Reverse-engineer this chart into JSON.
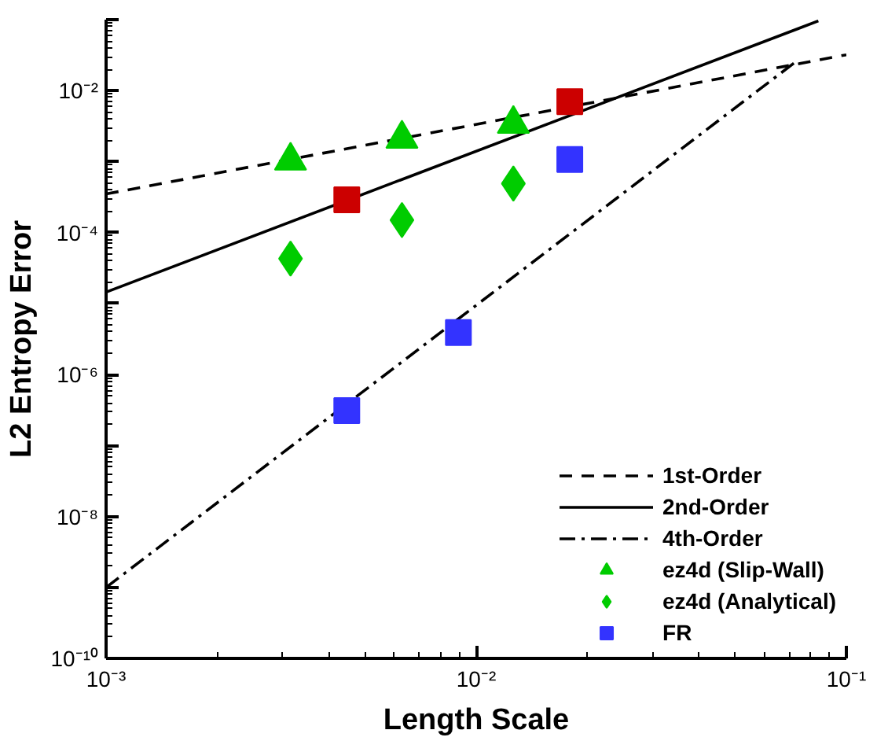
{
  "chart_data": {
    "type": "scatter",
    "xlabel": "Length Scale",
    "ylabel": "L2 Entropy Error",
    "log": "xy",
    "grid": false,
    "legend": "bottom right",
    "xlim": [
      0.001,
      0.1
    ],
    "ylim": [
      1e-10,
      0.1
    ],
    "xticks": [
      {
        "value": 0.001,
        "label": "10⁻³"
      },
      {
        "value": 0.01,
        "label": "10⁻²"
      },
      {
        "value": 0.1,
        "label": "10⁻¹"
      }
    ],
    "yticks": [
      {
        "value": 1e-10,
        "label": "10⁻¹⁰"
      },
      {
        "value": 1e-09,
        "label": null
      },
      {
        "value": 1e-08,
        "label": "10⁻⁸"
      },
      {
        "value": 1e-07,
        "label": null
      },
      {
        "value": 1e-06,
        "label": "10⁻⁶"
      },
      {
        "value": 1e-05,
        "label": null
      },
      {
        "value": 0.0001,
        "label": "10⁻⁴"
      },
      {
        "value": 0.001,
        "label": null
      },
      {
        "value": 0.01,
        "label": "10⁻²"
      },
      {
        "value": 0.1,
        "label": null
      }
    ],
    "series": [
      {
        "name": "1st-Order",
        "type": "line",
        "line_style": "dashed",
        "color": "#000000",
        "x": [
          0.001,
          0.1
        ],
        "values": [
          0.00035,
          0.032
        ]
      },
      {
        "name": "2nd-Order",
        "type": "line",
        "line_style": "solid",
        "color": "#000000",
        "x": [
          0.001,
          0.084
        ],
        "values": [
          1.45e-05,
          0.096
        ]
      },
      {
        "name": "4th-Order",
        "type": "line",
        "line_style": "dashdot",
        "color": "#000000",
        "x": [
          0.001,
          0.074
        ],
        "values": [
          1e-09,
          0.027
        ]
      },
      {
        "marker": "square",
        "color": "#cc0000",
        "x": [
          0.00447,
          0.0179
        ],
        "values": [
          0.00029,
          0.007
        ]
      },
      {
        "name": "ez4d (Slip-Wall)",
        "marker": "triangle",
        "color": "#00cc00",
        "x": [
          0.00315,
          0.0063,
          0.0126
        ],
        "values": [
          0.00103,
          0.0021,
          0.0034
        ]
      },
      {
        "name": "ez4d (Analytical)",
        "marker": "diamond",
        "color": "#00cc00",
        "x": [
          0.00315,
          0.0063,
          0.0126
        ],
        "values": [
          4.3e-05,
          0.00015,
          0.00049
        ]
      },
      {
        "name": "FR",
        "marker": "square",
        "color": "#3333ff",
        "x": [
          0.00447,
          0.00895,
          0.0179
        ],
        "values": [
          3.1e-07,
          3.9e-06,
          0.00107
        ]
      }
    ]
  }
}
